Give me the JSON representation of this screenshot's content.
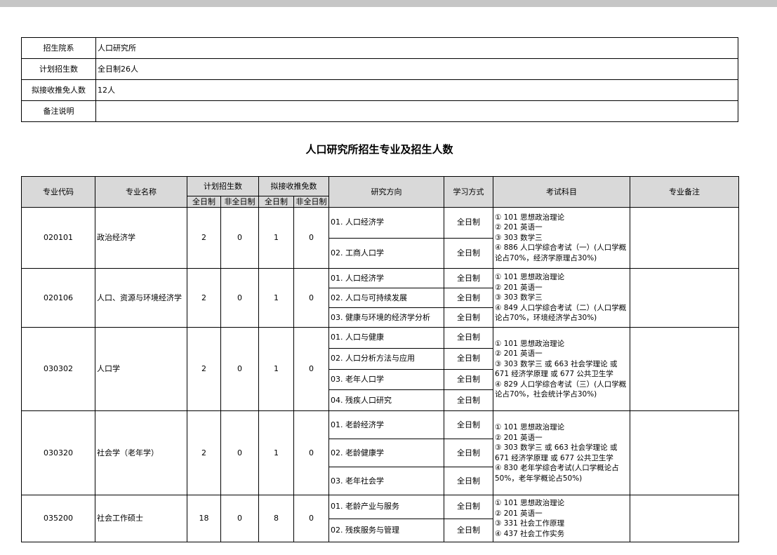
{
  "info": [
    {
      "label": "招生院系",
      "value": "人口研究所"
    },
    {
      "label": "计划招生数",
      "value": "全日制26人"
    },
    {
      "label": "拟接收推免人数",
      "value": "12人"
    },
    {
      "label": "备注说明",
      "value": ""
    }
  ],
  "title": "人口研究所招生专业及招生人数",
  "headers": {
    "code": "专业代码",
    "name": "专业名称",
    "plan": "计划招生数",
    "tuimian": "拟接收推免数",
    "full": "全日制",
    "part": "非全日制",
    "direction": "研究方向",
    "mode": "学习方式",
    "exam": "考试科目",
    "remark": "专业备注"
  },
  "programs": [
    {
      "code": "020101",
      "name": "政治经济学",
      "plan_full": "2",
      "plan_part": "0",
      "tm_full": "1",
      "tm_part": "0",
      "directions": [
        {
          "name": "01. 人口经济学",
          "mode": "全日制"
        },
        {
          "name": "02. 工商人口学",
          "mode": "全日制"
        }
      ],
      "exam": [
        "① 101 思想政治理论",
        "② 201 英语一",
        "③ 303 数学三",
        "④ 886 人口学综合考试（一）(人口学概论占70%，经济学原理占30%)"
      ],
      "remark": ""
    },
    {
      "code": "020106",
      "name": "人口、资源与环境经济学",
      "plan_full": "2",
      "plan_part": "0",
      "tm_full": "1",
      "tm_part": "0",
      "directions": [
        {
          "name": "01. 人口经济学",
          "mode": "全日制"
        },
        {
          "name": "02. 人口与可持续发展",
          "mode": "全日制"
        },
        {
          "name": "03. 健康与环境的经济学分析",
          "mode": "全日制"
        }
      ],
      "exam": [
        "① 101 思想政治理论",
        "② 201 英语一",
        "③ 303 数学三",
        "④ 849 人口学综合考试（二）(人口学概论占70%，环境经济学占30%)"
      ],
      "remark": ""
    },
    {
      "code": "030302",
      "name": "人口学",
      "plan_full": "2",
      "plan_part": "0",
      "tm_full": "1",
      "tm_part": "0",
      "directions": [
        {
          "name": "01. 人口与健康",
          "mode": "全日制"
        },
        {
          "name": "02. 人口分析方法与应用",
          "mode": "全日制"
        },
        {
          "name": "03. 老年人口学",
          "mode": "全日制"
        },
        {
          "name": "04. 残疾人口研究",
          "mode": "全日制"
        }
      ],
      "exam": [
        "① 101 思想政治理论",
        "② 201 英语一",
        "③ 303 数学三 或 663 社会学理论 或 671 经济学原理 或 677 公共卫生学",
        "④ 829 人口学综合考试（三）(人口学概论占70%，社会统计学占30%)"
      ],
      "remark": ""
    },
    {
      "code": "030320",
      "name": "社会学（老年学）",
      "plan_full": "2",
      "plan_part": "0",
      "tm_full": "1",
      "tm_part": "0",
      "directions": [
        {
          "name": "01. 老龄经济学",
          "mode": "全日制"
        },
        {
          "name": "02. 老龄健康学",
          "mode": "全日制"
        },
        {
          "name": "03. 老年社会学",
          "mode": "全日制"
        }
      ],
      "exam": [
        "① 101 思想政治理论",
        "② 201 英语一",
        "③ 303 数学三 或 663 社会学理论 或 671 经济学原理 或 677 公共卫生学",
        "④ 830 老年学综合考试(人口学概论占50%，老年学概论占50%)"
      ],
      "remark": ""
    },
    {
      "code": "035200",
      "name": "社会工作硕士",
      "plan_full": "18",
      "plan_part": "0",
      "tm_full": "8",
      "tm_part": "0",
      "directions": [
        {
          "name": "01. 老龄产业与服务",
          "mode": "全日制"
        },
        {
          "name": "02. 残疾服务与管理",
          "mode": "全日制"
        }
      ],
      "exam": [
        "① 101 思想政治理论",
        "② 201 英语一",
        "③ 331 社会工作原理",
        "④ 437 社会工作实务"
      ],
      "remark": ""
    }
  ]
}
